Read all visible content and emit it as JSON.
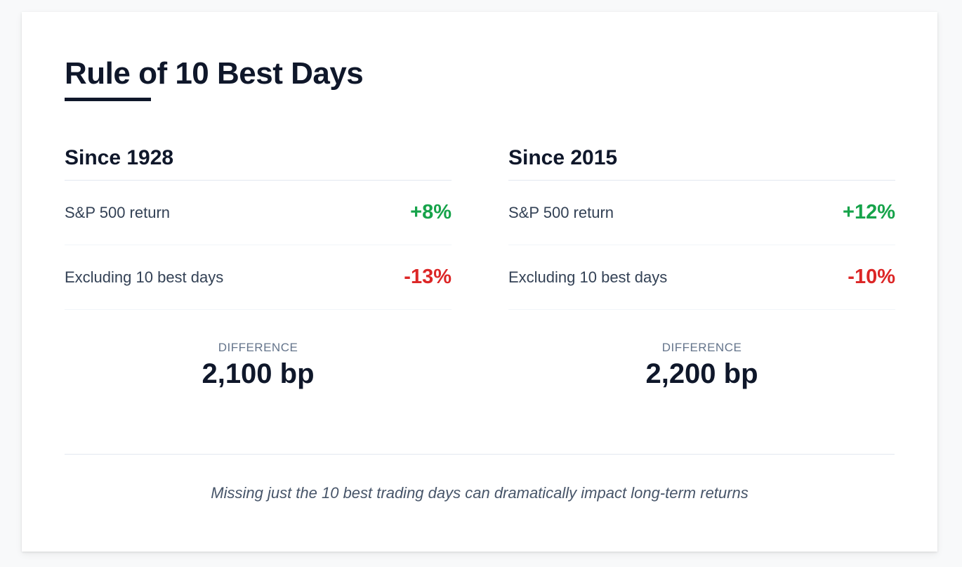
{
  "title": "Rule of 10 Best Days",
  "colors": {
    "positive": "#16a34a",
    "negative": "#dc2626",
    "text": "#0f172a"
  },
  "sections": [
    {
      "heading": "Since 1928",
      "sp500_label": "S&P 500 return",
      "sp500_value": "+8%",
      "excluding_label": "Excluding 10 best days",
      "excluding_value": "-13%",
      "difference_label": "DIFFERENCE",
      "difference_value": "2,100 bp"
    },
    {
      "heading": "Since 2015",
      "sp500_label": "S&P 500 return",
      "sp500_value": "+12%",
      "excluding_label": "Excluding 10 best days",
      "excluding_value": "-10%",
      "difference_label": "DIFFERENCE",
      "difference_value": "2,200 bp"
    }
  ],
  "footer_note": "Missing just the 10 best trading days can dramatically impact long-term returns"
}
